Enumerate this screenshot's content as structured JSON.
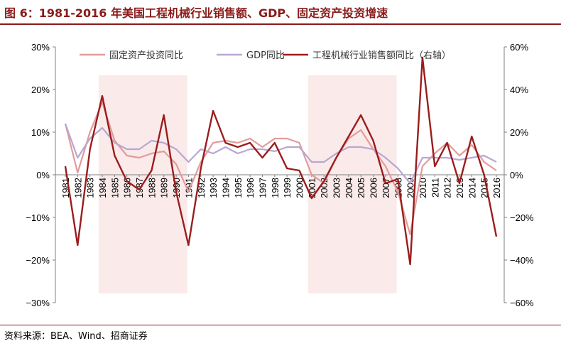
{
  "title": "图 6：1981-2016 年美国工程机械行业销售额、GDP、固定资产投资增速",
  "source": "资料来源：BEA、Wind、招商证券",
  "colors": {
    "fixed_investment": "#e39b9b",
    "gdp": "#b7a8d1",
    "machinery": "#9b1c1c",
    "shade": "#fbeaea",
    "axis": "#808080"
  },
  "chart_data": {
    "type": "line",
    "title": "图 6：1981-2016 年美国工程机械行业销售额、GDP、固定资产投资增速",
    "x": [
      1981,
      1982,
      1983,
      1984,
      1985,
      1986,
      1987,
      1988,
      1989,
      1990,
      1991,
      1992,
      1993,
      1994,
      1995,
      1996,
      1997,
      1998,
      1999,
      2000,
      2001,
      2002,
      2003,
      2004,
      2005,
      2006,
      2007,
      2008,
      2009,
      2010,
      2011,
      2012,
      2013,
      2014,
      2015,
      2016
    ],
    "x_tick_labels": [
      "1981",
      "1982",
      "1983",
      "1984",
      "1985",
      "1986",
      "1987",
      "1988",
      "1989",
      "1990",
      "1991",
      "1992",
      "1993",
      "1994",
      "1995",
      "1996",
      "1997",
      "1998",
      "1999",
      "2000",
      "2001",
      "2002",
      "2003",
      "2004",
      "2005",
      "2006",
      "2007",
      "2008",
      "2009",
      "2010",
      "2011",
      "2012",
      "2013",
      "2014",
      "2015",
      "2016"
    ],
    "y_left": {
      "min": -30,
      "max": 30,
      "ticks": [
        "30%",
        "20%",
        "10%",
        "0%",
        "−10%",
        "−20%",
        "−30%"
      ]
    },
    "y_right": {
      "min": -60,
      "max": 60,
      "ticks": [
        "60%",
        "40%",
        "20%",
        "0%",
        "−20%",
        "−40%",
        "−60%"
      ]
    },
    "shaded_ranges": [
      [
        1983.7,
        1990.9
      ],
      [
        2000.7,
        2007.9
      ]
    ],
    "legend_position": "top",
    "series": [
      {
        "name": "固定资产投资同比",
        "axis": "left",
        "values": [
          12,
          0.5,
          10,
          17,
          8,
          4.5,
          4,
          5,
          5.5,
          2.5,
          -4,
          3,
          7.5,
          8,
          7.5,
          8.5,
          6.5,
          8.5,
          8.5,
          7.5,
          0,
          -2,
          4,
          8.5,
          10.5,
          6,
          2,
          -4,
          -14,
          2,
          5,
          7.5,
          4.5,
          7,
          3,
          1
        ]
      },
      {
        "name": "GDP同比",
        "axis": "left",
        "values": [
          12,
          4,
          8.5,
          11,
          7.5,
          6,
          6,
          8,
          7.5,
          6,
          3,
          6,
          5,
          6.5,
          5,
          6,
          6,
          5.5,
          6.5,
          6.5,
          3,
          3,
          5,
          6.5,
          6.5,
          6,
          4,
          1.5,
          -2,
          4,
          4,
          4,
          3.5,
          4,
          4.5,
          3
        ]
      },
      {
        "name": "工程机械行业销售额同比（右轴）",
        "axis": "right",
        "values": [
          4,
          -33,
          12,
          37,
          9,
          -3,
          -7,
          2,
          28,
          -8,
          -33,
          3,
          30,
          15,
          13,
          15,
          8,
          15,
          3,
          2,
          -11,
          -3,
          8,
          18,
          28,
          16,
          -4,
          -2,
          -42,
          55,
          4,
          15,
          -4,
          18,
          0,
          -29
        ]
      }
    ]
  }
}
